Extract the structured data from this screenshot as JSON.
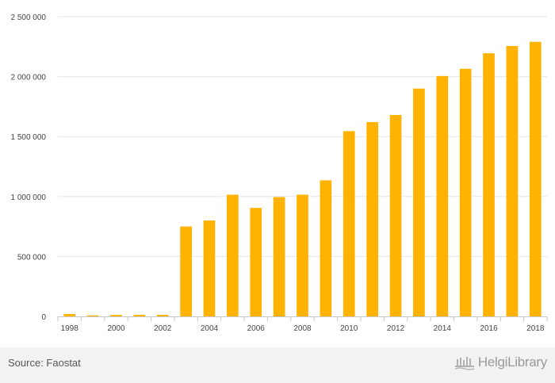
{
  "chart_data": {
    "type": "bar",
    "categories": [
      "1998",
      "1999",
      "2000",
      "2001",
      "2002",
      "2003",
      "2004",
      "2005",
      "2006",
      "2007",
      "2008",
      "2009",
      "2010",
      "2011",
      "2012",
      "2013",
      "2014",
      "2015",
      "2016",
      "2017",
      "2018"
    ],
    "values": [
      20000,
      8000,
      12000,
      13000,
      13000,
      750000,
      800000,
      1015000,
      905000,
      995000,
      1015000,
      1135000,
      1545000,
      1620000,
      1680000,
      1900000,
      2005000,
      2065000,
      2195000,
      2255000,
      2290000
    ],
    "ylim": [
      0,
      2500000
    ],
    "y_ticks": [
      "0",
      "500 000",
      "1 000 000",
      "1 500 000",
      "2 000 000",
      "2 500 000"
    ],
    "x_tick_labels": [
      "1998",
      "2000",
      "2002",
      "2004",
      "2006",
      "2008",
      "2010",
      "2012",
      "2014",
      "2016",
      "2018"
    ],
    "bar_color": "#ffb300",
    "grid": true,
    "legend": "none"
  },
  "footer": {
    "source": "Source: Faostat",
    "brand": "HelgiLibrary"
  }
}
